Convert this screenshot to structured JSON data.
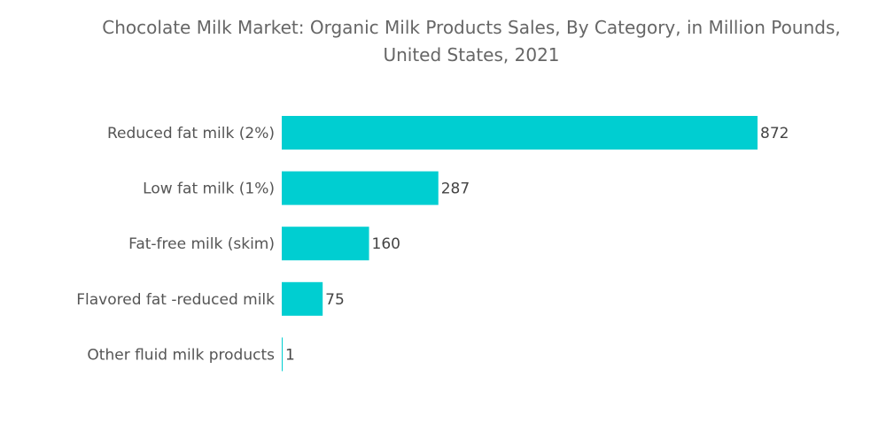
{
  "chart_data": {
    "type": "bar",
    "orientation": "horizontal",
    "title": "Chocolate Milk Market: Organic Milk Products Sales, By Category, in Million Pounds, United States, 2021",
    "title_lines": [
      "Chocolate Milk Market: Organic Milk Products Sales, By Category, in Million Pounds,",
      "United States, 2021"
    ],
    "categories": [
      "Reduced fat milk (2%)",
      "Low fat milk (1%)",
      "Fat-free milk (skim)",
      "Flavored fat -reduced milk",
      "Other fluid milk products"
    ],
    "values": [
      872,
      287,
      160,
      75,
      1
    ],
    "xlim": [
      0,
      872
    ],
    "grid": false,
    "data_labels": true,
    "colors": {
      "bar": "#00CED1",
      "text": "#555555"
    }
  }
}
